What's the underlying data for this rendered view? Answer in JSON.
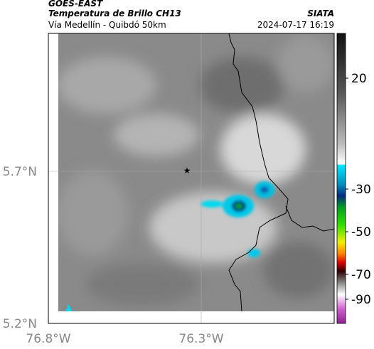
{
  "header": {
    "title": "GOES-EAST",
    "subtitle": "Temperatura de Brillo CH13",
    "region": "Vía Medellín - Quibdó 50km",
    "source": "SIATA",
    "datetime": "2024-07-17 16:19"
  },
  "axes": {
    "lat_labels": [
      "5.7°N",
      "5.2°N"
    ],
    "lon_labels": [
      "76.8°W",
      "76.3°W"
    ]
  },
  "colorbar": {
    "ticks": [
      20,
      -30,
      -50,
      -70,
      -90
    ]
  }
}
